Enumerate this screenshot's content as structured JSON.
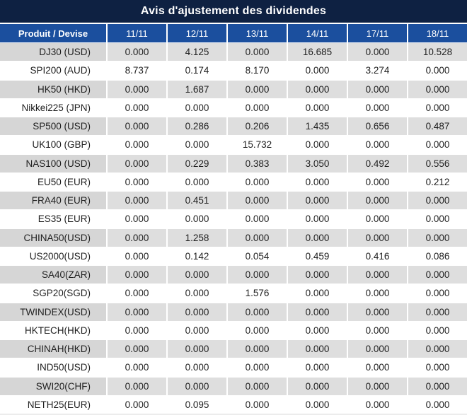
{
  "title": "Avis d'ajustement des dividendes",
  "columns": {
    "product": "Produit / Devise",
    "dates": [
      "11/11",
      "12/11",
      "13/11",
      "14/11",
      "17/11",
      "18/11"
    ]
  },
  "rows": [
    {
      "label": "DJ30 (USD)",
      "values": [
        "0.000",
        "4.125",
        "0.000",
        "16.685",
        "0.000",
        "10.528"
      ]
    },
    {
      "label": "SPI200 (AUD)",
      "values": [
        "8.737",
        "0.174",
        "8.170",
        "0.000",
        "3.274",
        "0.000"
      ]
    },
    {
      "label": "HK50 (HKD)",
      "values": [
        "0.000",
        "1.687",
        "0.000",
        "0.000",
        "0.000",
        "0.000"
      ]
    },
    {
      "label": "Nikkei225 (JPN)",
      "values": [
        "0.000",
        "0.000",
        "0.000",
        "0.000",
        "0.000",
        "0.000"
      ]
    },
    {
      "label": "SP500 (USD)",
      "values": [
        "0.000",
        "0.286",
        "0.206",
        "1.435",
        "0.656",
        "0.487"
      ]
    },
    {
      "label": "UK100 (GBP)",
      "values": [
        "0.000",
        "0.000",
        "15.732",
        "0.000",
        "0.000",
        "0.000"
      ]
    },
    {
      "label": "NAS100 (USD)",
      "values": [
        "0.000",
        "0.229",
        "0.383",
        "3.050",
        "0.492",
        "0.556"
      ]
    },
    {
      "label": "EU50 (EUR)",
      "values": [
        "0.000",
        "0.000",
        "0.000",
        "0.000",
        "0.000",
        "0.212"
      ]
    },
    {
      "label": "FRA40 (EUR)",
      "values": [
        "0.000",
        "0.451",
        "0.000",
        "0.000",
        "0.000",
        "0.000"
      ]
    },
    {
      "label": "ES35 (EUR)",
      "values": [
        "0.000",
        "0.000",
        "0.000",
        "0.000",
        "0.000",
        "0.000"
      ]
    },
    {
      "label": "CHINA50(USD)",
      "values": [
        "0.000",
        "1.258",
        "0.000",
        "0.000",
        "0.000",
        "0.000"
      ]
    },
    {
      "label": "US2000(USD)",
      "values": [
        "0.000",
        "0.142",
        "0.054",
        "0.459",
        "0.416",
        "0.086"
      ]
    },
    {
      "label": "SA40(ZAR)",
      "values": [
        "0.000",
        "0.000",
        "0.000",
        "0.000",
        "0.000",
        "0.000"
      ]
    },
    {
      "label": "SGP20(SGD)",
      "values": [
        "0.000",
        "0.000",
        "1.576",
        "0.000",
        "0.000",
        "0.000"
      ]
    },
    {
      "label": "TWINDEX(USD)",
      "values": [
        "0.000",
        "0.000",
        "0.000",
        "0.000",
        "0.000",
        "0.000"
      ]
    },
    {
      "label": "HKTECH(HKD)",
      "values": [
        "0.000",
        "0.000",
        "0.000",
        "0.000",
        "0.000",
        "0.000"
      ]
    },
    {
      "label": "CHINAH(HKD)",
      "values": [
        "0.000",
        "0.000",
        "0.000",
        "0.000",
        "0.000",
        "0.000"
      ]
    },
    {
      "label": "IND50(USD)",
      "values": [
        "0.000",
        "0.000",
        "0.000",
        "0.000",
        "0.000",
        "0.000"
      ]
    },
    {
      "label": "SWI20(CHF)",
      "values": [
        "0.000",
        "0.000",
        "0.000",
        "0.000",
        "0.000",
        "0.000"
      ]
    },
    {
      "label": "NETH25(EUR)",
      "values": [
        "0.000",
        "0.095",
        "0.000",
        "0.000",
        "0.000",
        "0.000"
      ]
    }
  ],
  "colors": {
    "title_bg": "#0e2142",
    "header_bg": "#1b4f9e",
    "stripe_label_bg": "#d6d6d6",
    "stripe_value_bg": "#dedede",
    "nonzero_value": "#e3302a",
    "zero_value": "#1f1f1f"
  }
}
